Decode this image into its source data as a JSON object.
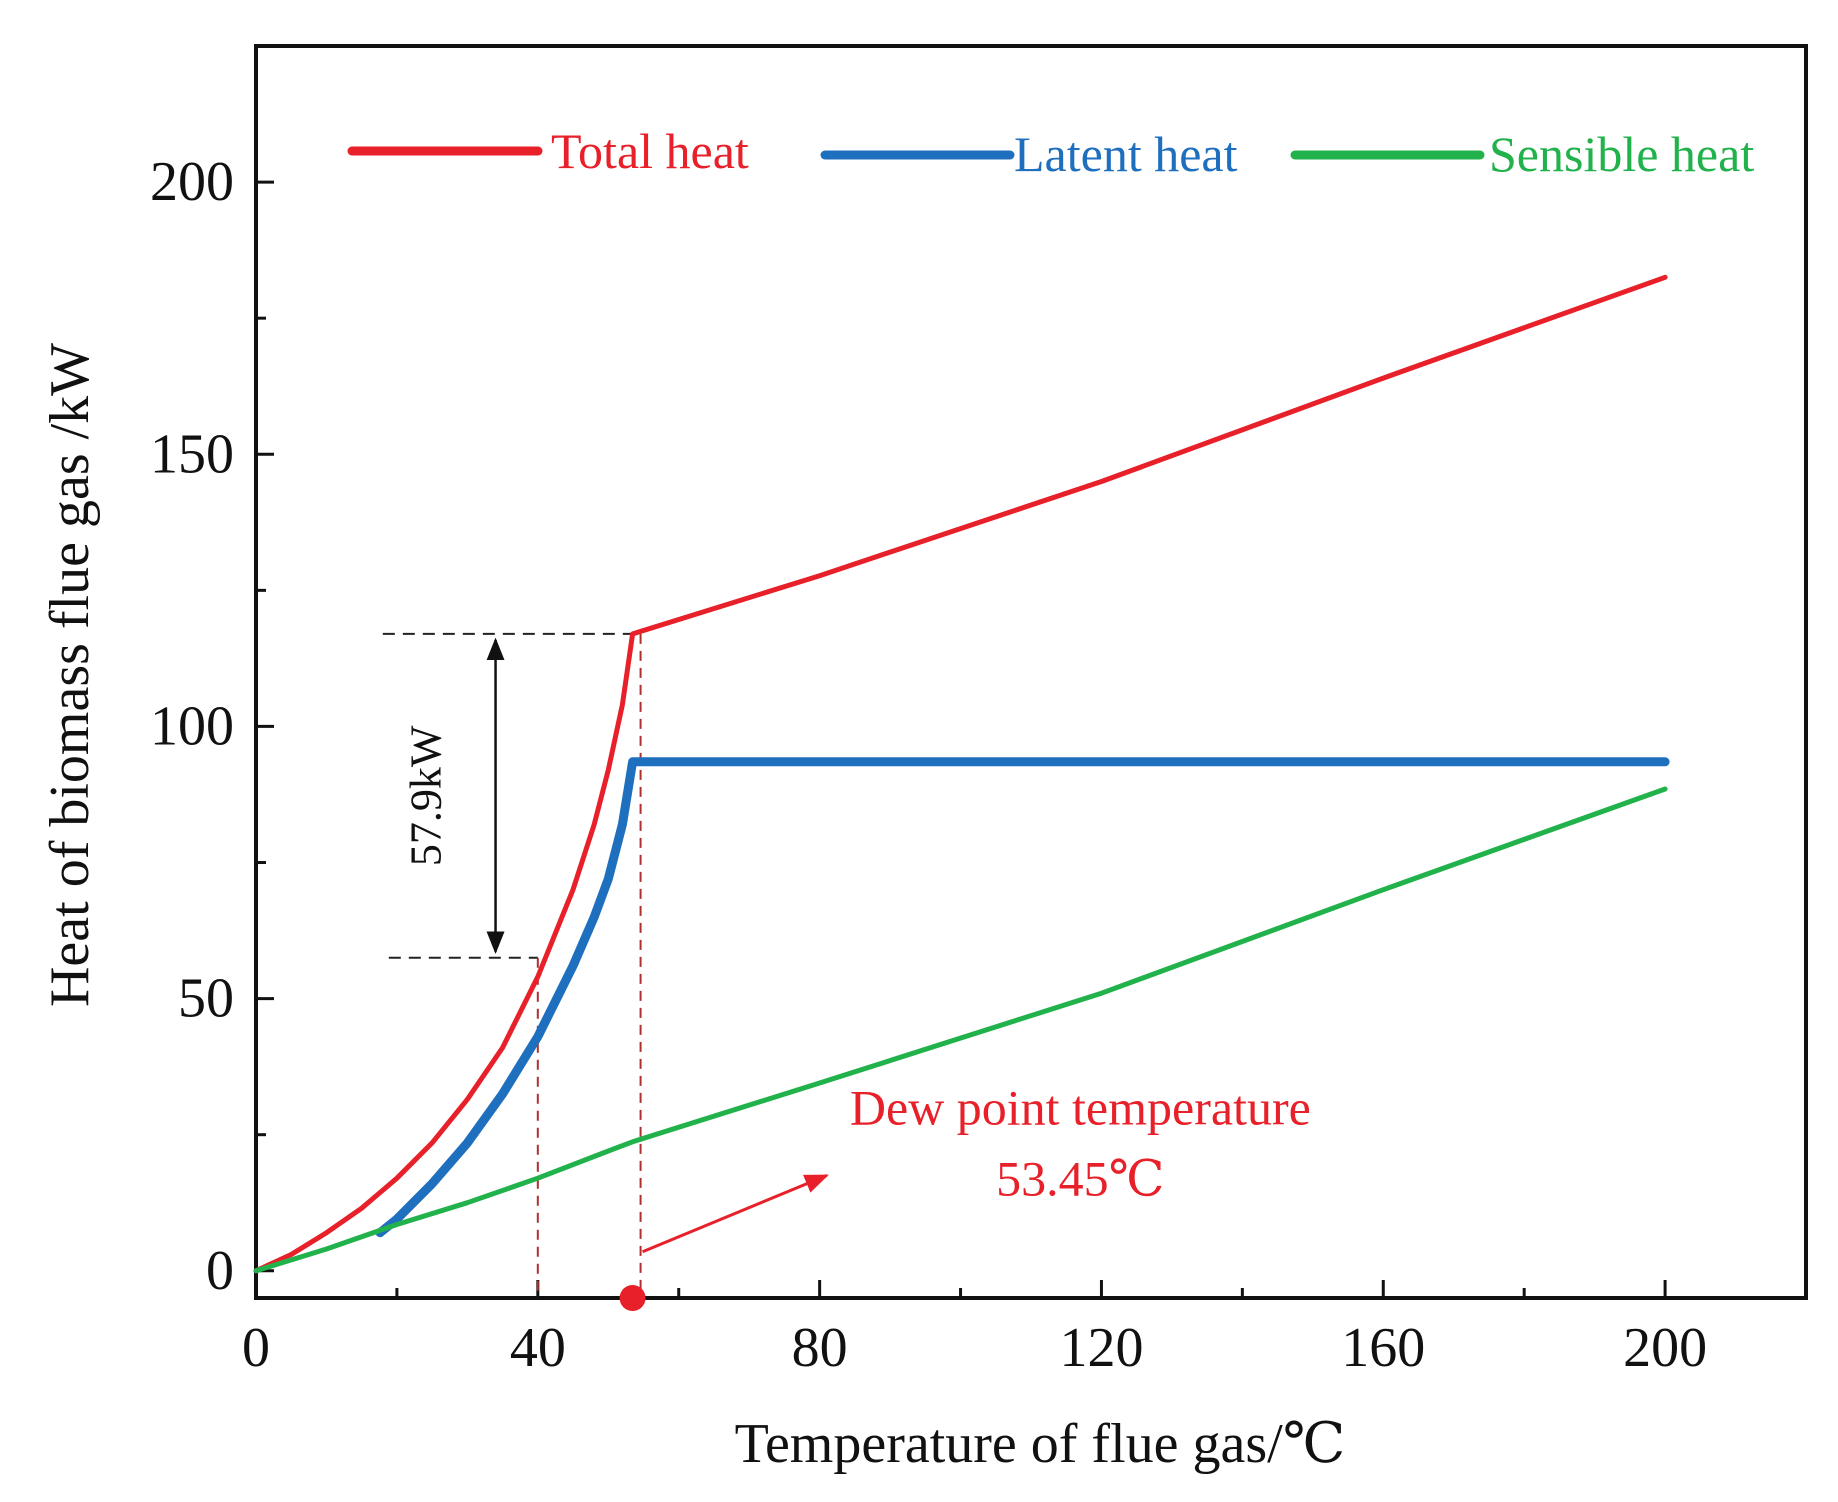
{
  "chart_data": {
    "type": "line",
    "xlabel": "Temperature of flue gas/℃",
    "ylabel": "Heat of biomass flue gas /kW",
    "xlim": [
      0,
      220
    ],
    "ylim": [
      -5,
      225
    ],
    "x_ticks": [
      0,
      40,
      80,
      120,
      160,
      200
    ],
    "y_ticks": [
      0,
      50,
      100,
      150,
      200
    ],
    "x_minor_ticks": [
      20,
      60,
      100,
      140,
      180
    ],
    "y_minor_ticks": [
      25,
      75,
      125,
      175
    ],
    "grid": false,
    "legend_position": "top",
    "series": [
      {
        "name": "Total heat",
        "color": "#e8202a",
        "points": [
          [
            0,
            0
          ],
          [
            5,
            3
          ],
          [
            10,
            7
          ],
          [
            15,
            11.5
          ],
          [
            20,
            17
          ],
          [
            25,
            23.5
          ],
          [
            30,
            31.5
          ],
          [
            35,
            41
          ],
          [
            40,
            54
          ],
          [
            45,
            70
          ],
          [
            48,
            82
          ],
          [
            50,
            92
          ],
          [
            52,
            104
          ],
          [
            53.45,
            117
          ],
          [
            80,
            127.7
          ],
          [
            120,
            145
          ],
          [
            160,
            164
          ],
          [
            200,
            182.5
          ]
        ]
      },
      {
        "name": "Latent heat",
        "color": "#1f6fbf",
        "points": [
          [
            17.6,
            7
          ],
          [
            20,
            9.5
          ],
          [
            25,
            16
          ],
          [
            30,
            23.5
          ],
          [
            35,
            32.5
          ],
          [
            40,
            43
          ],
          [
            45,
            56
          ],
          [
            48,
            65
          ],
          [
            50,
            72
          ],
          [
            52,
            82
          ],
          [
            53.45,
            93.5
          ],
          [
            200,
            93.5
          ]
        ]
      },
      {
        "name": "Sensible heat",
        "color": "#22b24c",
        "points": [
          [
            0,
            0
          ],
          [
            10,
            4
          ],
          [
            20,
            8.5
          ],
          [
            30,
            12.5
          ],
          [
            40,
            17
          ],
          [
            50,
            22
          ],
          [
            53.45,
            23.7
          ],
          [
            80,
            34.5
          ],
          [
            120,
            51
          ],
          [
            160,
            70
          ],
          [
            200,
            88.5
          ]
        ]
      }
    ],
    "annotations": {
      "gap_label": "57.9kW",
      "gap_range": [
        117,
        57.5
      ],
      "gap_line_x_start": 18,
      "gap_arrow_x": 34,
      "dew_title": "Dew point temperature",
      "dew_value": "53.45℃",
      "dew_x": 53.45,
      "dashed_x": 40,
      "dashed_x_top": 57.5,
      "annotation_color": "#e8202a"
    }
  }
}
